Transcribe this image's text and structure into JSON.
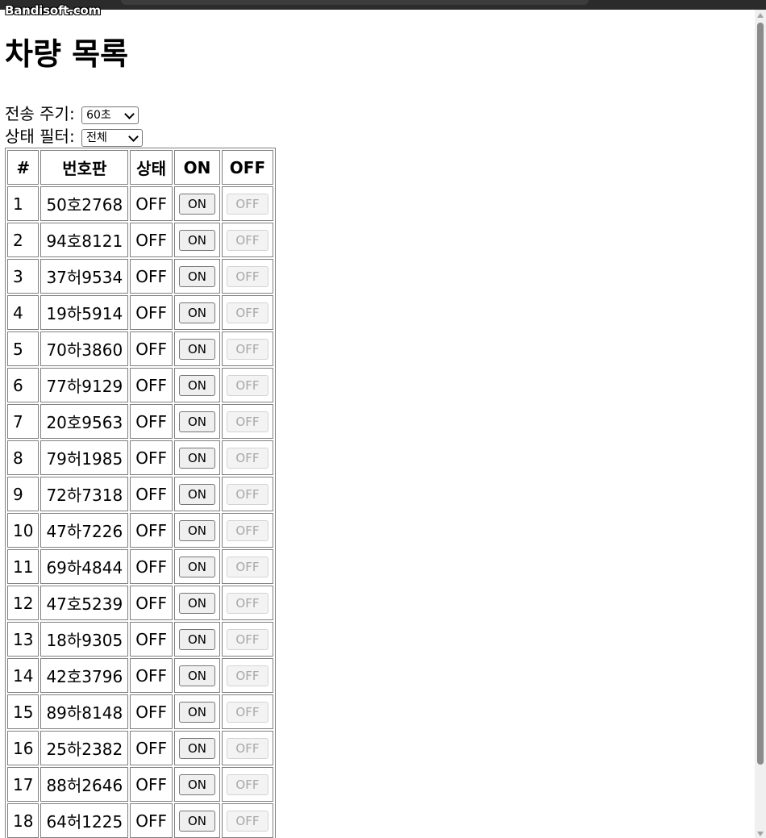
{
  "watermark": "Bandisoft.com",
  "page_title": "차량 목록",
  "interval": {
    "label": "전송 주기:",
    "selected": "60초"
  },
  "filter": {
    "label": "상태 필터:",
    "selected": "전체"
  },
  "table": {
    "headers": [
      "#",
      "번호판",
      "상태",
      "ON",
      "OFF"
    ],
    "rows": [
      {
        "num": "1",
        "plate": "50호2768",
        "status": "OFF",
        "on_label": "ON",
        "off_label": "OFF"
      },
      {
        "num": "2",
        "plate": "94호8121",
        "status": "OFF",
        "on_label": "ON",
        "off_label": "OFF"
      },
      {
        "num": "3",
        "plate": "37허9534",
        "status": "OFF",
        "on_label": "ON",
        "off_label": "OFF"
      },
      {
        "num": "4",
        "plate": "19하5914",
        "status": "OFF",
        "on_label": "ON",
        "off_label": "OFF"
      },
      {
        "num": "5",
        "plate": "70하3860",
        "status": "OFF",
        "on_label": "ON",
        "off_label": "OFF"
      },
      {
        "num": "6",
        "plate": "77하9129",
        "status": "OFF",
        "on_label": "ON",
        "off_label": "OFF"
      },
      {
        "num": "7",
        "plate": "20호9563",
        "status": "OFF",
        "on_label": "ON",
        "off_label": "OFF"
      },
      {
        "num": "8",
        "plate": "79허1985",
        "status": "OFF",
        "on_label": "ON",
        "off_label": "OFF"
      },
      {
        "num": "9",
        "plate": "72하7318",
        "status": "OFF",
        "on_label": "ON",
        "off_label": "OFF"
      },
      {
        "num": "10",
        "plate": "47하7226",
        "status": "OFF",
        "on_label": "ON",
        "off_label": "OFF"
      },
      {
        "num": "11",
        "plate": "69하4844",
        "status": "OFF",
        "on_label": "ON",
        "off_label": "OFF"
      },
      {
        "num": "12",
        "plate": "47호5239",
        "status": "OFF",
        "on_label": "ON",
        "off_label": "OFF"
      },
      {
        "num": "13",
        "plate": "18하9305",
        "status": "OFF",
        "on_label": "ON",
        "off_label": "OFF"
      },
      {
        "num": "14",
        "plate": "42호3796",
        "status": "OFF",
        "on_label": "ON",
        "off_label": "OFF"
      },
      {
        "num": "15",
        "plate": "89하8148",
        "status": "OFF",
        "on_label": "ON",
        "off_label": "OFF"
      },
      {
        "num": "16",
        "plate": "25하2382",
        "status": "OFF",
        "on_label": "ON",
        "off_label": "OFF"
      },
      {
        "num": "17",
        "plate": "88허2646",
        "status": "OFF",
        "on_label": "ON",
        "off_label": "OFF"
      },
      {
        "num": "18",
        "plate": "64허1225",
        "status": "OFF",
        "on_label": "ON",
        "off_label": "OFF"
      }
    ]
  },
  "icons": {
    "select_arrow": "chevron-down-icon",
    "scroll_up": "scroll-up-arrow-icon",
    "scroll_down": "scroll-down-arrow-icon"
  },
  "colors": {
    "disabled_text": "#a8a8a8",
    "button_bg": "#efefef",
    "border": "#808080"
  }
}
